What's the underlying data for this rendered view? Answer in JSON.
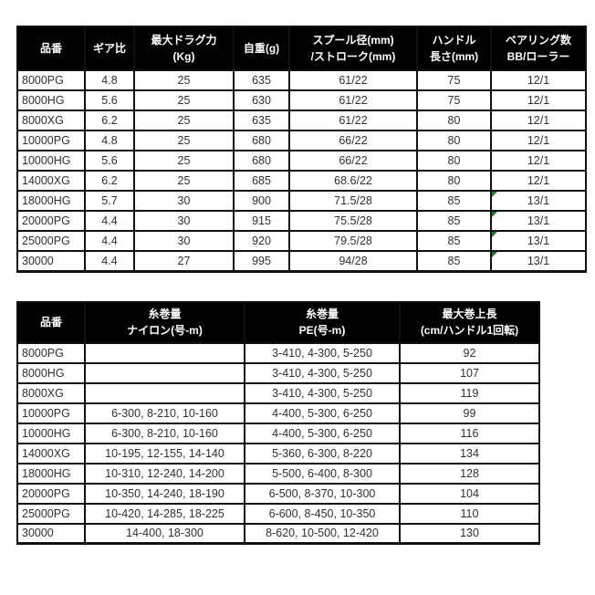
{
  "colors": {
    "header_bg": "#000000",
    "header_text": "#ffffff",
    "body_text": "#303030",
    "border": "#111111",
    "comment_marker_green": "#1e7b2e"
  },
  "spec_table": {
    "columns": [
      {
        "id": "model",
        "lines": [
          "品番"
        ]
      },
      {
        "id": "gear-ratio",
        "lines": [
          "ギア比"
        ]
      },
      {
        "id": "max-drag",
        "lines": [
          "最大ドラグ力",
          "(Kg)"
        ]
      },
      {
        "id": "weight",
        "lines": [
          "自重(g)"
        ]
      },
      {
        "id": "spool",
        "lines": [
          "スプール径(mm)",
          "/ストローク(mm)"
        ]
      },
      {
        "id": "handle",
        "lines": [
          "ハンドル",
          "長さ(mm)"
        ]
      },
      {
        "id": "bearing",
        "lines": [
          "ベアリング数",
          "BB/ローラー"
        ]
      }
    ],
    "rows": [
      [
        "8000PG",
        "4.8",
        "25",
        "635",
        "61/22",
        "75",
        "12/1"
      ],
      [
        "8000HG",
        "5.6",
        "25",
        "630",
        "61/22",
        "75",
        "12/1"
      ],
      [
        "8000XG",
        "6.2",
        "25",
        "635",
        "61/22",
        "80",
        "12/1"
      ],
      [
        "10000PG",
        "4.8",
        "25",
        "680",
        "66/22",
        "80",
        "12/1"
      ],
      [
        "10000HG",
        "5.6",
        "25",
        "680",
        "66/22",
        "80",
        "12/1"
      ],
      [
        "14000XG",
        "6.2",
        "25",
        "685",
        "68.6/22",
        "80",
        "12/1"
      ],
      [
        "18000HG",
        "5.7",
        "30",
        "900",
        "71.5/28",
        "85",
        "13/1"
      ],
      [
        "20000PG",
        "4.4",
        "30",
        "915",
        "75.5/28",
        "85",
        "13/1"
      ],
      [
        "25000PG",
        "4.4",
        "30",
        "920",
        "79.5/28",
        "85",
        "13/1"
      ],
      [
        "30000",
        "4.4",
        "27",
        "995",
        "94/28",
        "85",
        "13/1"
      ]
    ],
    "green_marker_rows": [
      6,
      7,
      8,
      9
    ],
    "green_marker_col": 6
  },
  "line_capacity_table": {
    "columns": [
      {
        "id": "model",
        "lines": [
          "品番"
        ]
      },
      {
        "id": "nylon",
        "lines": [
          "糸巻量",
          "ナイロン(号-m)"
        ]
      },
      {
        "id": "pe",
        "lines": [
          "糸巻量",
          "PE(号-m)"
        ]
      },
      {
        "id": "max-retrieve",
        "lines": [
          "最大巻上長",
          "(cm/ハンドル1回転)"
        ]
      }
    ],
    "rows": [
      [
        "8000PG",
        "",
        "3-410, 4-300, 5-250",
        "92"
      ],
      [
        "8000HG",
        "",
        "3-410, 4-300, 5-250",
        "107"
      ],
      [
        "8000XG",
        "",
        "3-410, 4-300, 5-250",
        "119"
      ],
      [
        "10000PG",
        "6-300, 8-210, 10-160",
        "4-400, 5-300, 6-250",
        "99"
      ],
      [
        "10000HG",
        "6-300, 8-210, 10-160",
        "4-400, 5-300, 6-250",
        "116"
      ],
      [
        "14000XG",
        "10-195, 12-155, 14-140",
        "5-360, 6-300, 8-220",
        "134"
      ],
      [
        "18000HG",
        "10-310, 12-240, 14-200",
        "5-500, 6-400, 8-300",
        "128"
      ],
      [
        "20000PG",
        "10-350, 14-240, 18-190",
        "6-500, 8-370, 10-300",
        "104"
      ],
      [
        "25000PG",
        "10-420, 14-285, 18-225",
        "6-600, 8-450, 10-350",
        "110"
      ],
      [
        "30000",
        "14-400, 18-300",
        "8-620, 10-500, 12-420",
        "130"
      ]
    ],
    "green_marker_rows": [],
    "green_marker_col": -1
  }
}
